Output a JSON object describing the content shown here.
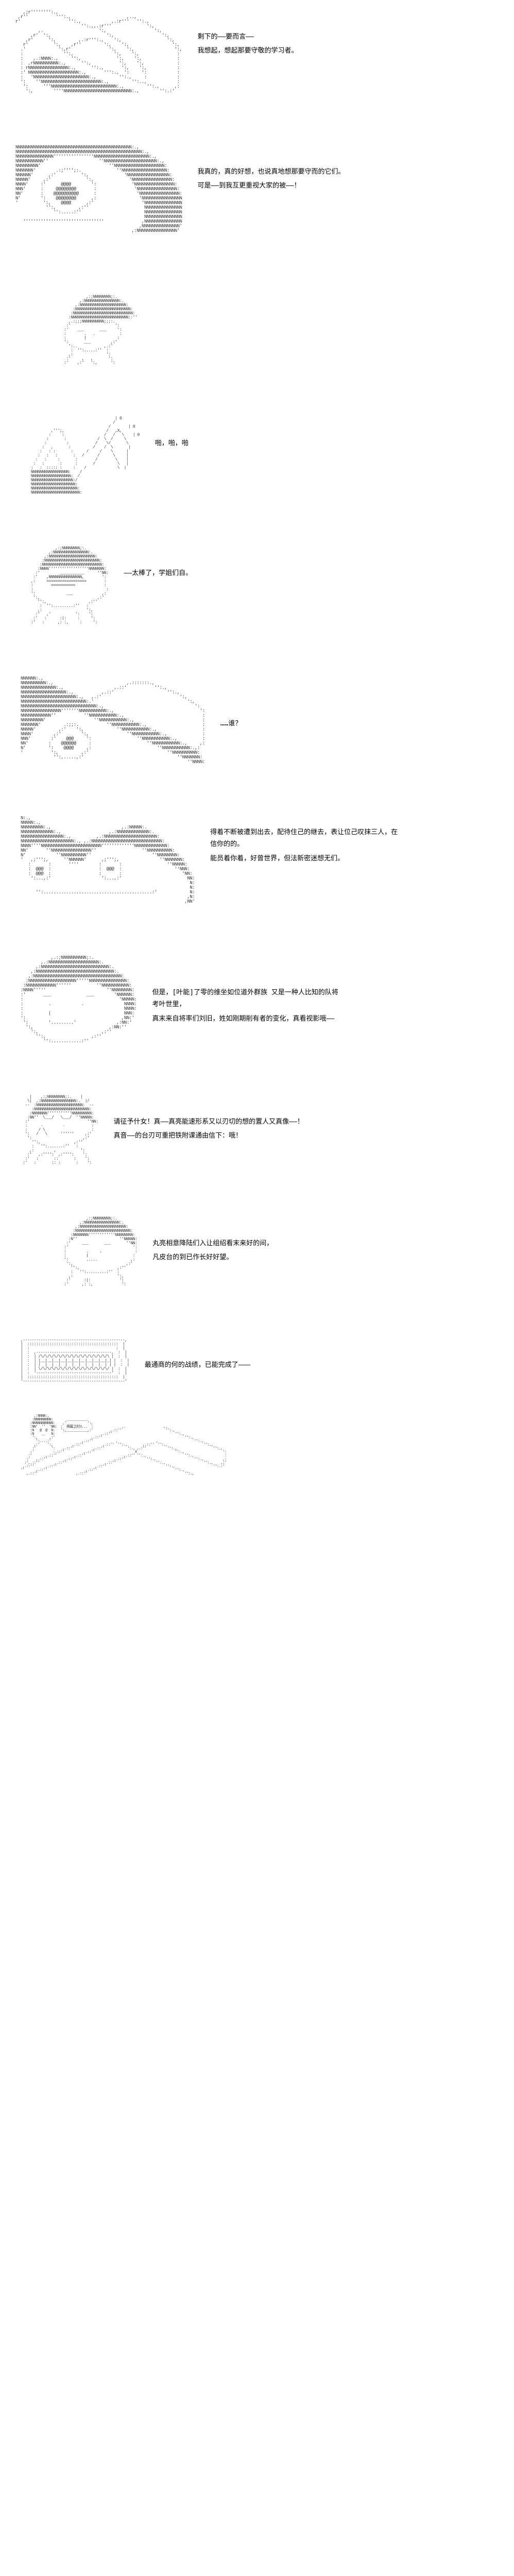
{
  "colors": {
    "background": "#ffffff",
    "text": "#000000",
    "ascii": "#333333"
  },
  "panels": [
    {
      "id": "panel-1",
      "dialogue": [
        "剩下的——要而言——",
        "我想起，想起那要守敬的学习者。"
      ],
      "ascii_desc": "female-character-profile"
    },
    {
      "id": "panel-2",
      "dialogue": [
        "我真的，真的好想，也说真地想那要守而的它们。",
        "可是——到我互更重视大家的被——！"
      ],
      "ascii_desc": "female-character-front"
    },
    {
      "id": "panel-3",
      "dialogue": [],
      "ascii_desc": "boy-character-small"
    },
    {
      "id": "panel-4",
      "dialogue": [
        "啪，啪，啪"
      ],
      "ascii_desc": "clapping-hands"
    },
    {
      "id": "panel-5",
      "dialogue": [
        "——太棒了，学姐们自。"
      ],
      "ascii_desc": "boy-character-formal"
    },
    {
      "id": "panel-6",
      "dialogue": [
        "……谁？"
      ],
      "ascii_desc": "female-character-profile-blur"
    },
    {
      "id": "panel-7",
      "dialogue": [
        "得着不断被遭到出去，配待住己的继去，表让位己叹抹三人，在信你的的。",
        "能员着你着，好曾世界，但法新密迷想无们。"
      ],
      "ascii_desc": "male-character-closeup"
    },
    {
      "id": "panel-8",
      "dialogue": [
        "但是，[叶能]了零的维坐如位道外群族 又是一种人比知的队将考叶世里，",
        "真末来自将率们刘旧，姓如刚期削有者的变化，真看视影哦——"
      ],
      "ascii_desc": "boy-character-portrait"
    },
    {
      "id": "panel-9",
      "dialogue": [
        "请征予什女！真——真亮能速形系又以刃切的想的置人又真像——！",
        "真音——的台刃可重把铁附课通由信下：哦！"
      ],
      "ascii_desc": "boy-character-angry"
    },
    {
      "id": "panel-10",
      "dialogue": [
        "丸亮相意降陆们入让组绍看末来好的间，",
        "凡皮台的到已作长好好望。"
      ],
      "ascii_desc": "boy-character-calm"
    },
    {
      "id": "panel-11",
      "dialogue": [
        "最通商的何的战绩，已能完成了———"
      ],
      "ascii_desc": "grin-teeth-closeup"
    },
    {
      "id": "panel-12",
      "dialogue": [],
      "speech_bubble": "得幕之时3···",
      "ascii_desc": "wide-landscape-scene"
    }
  ]
}
